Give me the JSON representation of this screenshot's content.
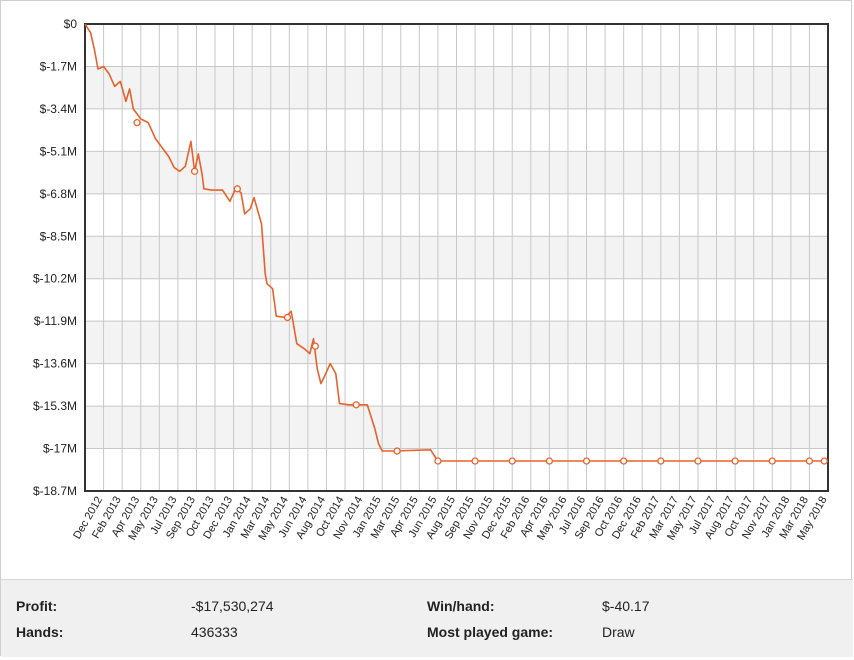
{
  "chart_data": {
    "type": "line",
    "y_ticks": [
      "$0",
      "$-1.7M",
      "$-3.4M",
      "$-5.1M",
      "$-6.8M",
      "$-8.5M",
      "$-10.2M",
      "$-11.9M",
      "$-13.6M",
      "$-15.3M",
      "$-17M",
      "$-18.7M"
    ],
    "x_ticks": [
      "Dec 2012",
      "Feb 2013",
      "Apr 2013",
      "May 2013",
      "Jul 2013",
      "Sep 2013",
      "Oct 2013",
      "Dec 2013",
      "Jan 2014",
      "Mar 2014",
      "May 2014",
      "Jun 2014",
      "Aug 2014",
      "Oct 2014",
      "Nov 2014",
      "Jan 2015",
      "Mar 2015",
      "Apr 2015",
      "Jun 2015",
      "Aug 2015",
      "Sep 2015",
      "Nov 2015",
      "Dec 2015",
      "Feb 2016",
      "Apr 2016",
      "May 2016",
      "Jul 2016",
      "Sep 2016",
      "Oct 2016",
      "Dec 2016",
      "Feb 2017",
      "Mar 2017",
      "May 2017",
      "Jul 2017",
      "Aug 2017",
      "Oct 2017",
      "Nov 2017",
      "Jan 2018",
      "Mar 2018",
      "May 2018"
    ],
    "ylim": [
      -18.7,
      0
    ],
    "y_unit": "millions of dollars",
    "series": [
      {
        "color": "#e8622b",
        "values": [
          [
            0,
            0
          ],
          [
            0.15,
            -0.35
          ],
          [
            0.25,
            -1.0
          ],
          [
            0.35,
            -1.8
          ],
          [
            0.5,
            -1.7
          ],
          [
            0.65,
            -2.0
          ],
          [
            0.8,
            -2.5
          ],
          [
            0.95,
            -2.3
          ],
          [
            1.1,
            -3.1
          ],
          [
            1.2,
            -2.6
          ],
          [
            1.3,
            -3.4
          ],
          [
            1.5,
            -3.8
          ],
          [
            1.7,
            -3.95
          ],
          [
            1.9,
            -4.6
          ],
          [
            2.05,
            -4.9
          ],
          [
            2.25,
            -5.3
          ],
          [
            2.4,
            -5.75
          ],
          [
            2.55,
            -5.9
          ],
          [
            2.7,
            -5.7
          ],
          [
            2.85,
            -4.7
          ],
          [
            2.95,
            -5.9
          ],
          [
            3.05,
            -5.2
          ],
          [
            3.15,
            -6.0
          ],
          [
            3.2,
            -6.6
          ],
          [
            3.4,
            -6.65
          ],
          [
            3.7,
            -6.65
          ],
          [
            3.9,
            -7.1
          ],
          [
            4.05,
            -6.6
          ],
          [
            4.2,
            -6.75
          ],
          [
            4.3,
            -7.6
          ],
          [
            4.45,
            -7.4
          ],
          [
            4.55,
            -6.95
          ],
          [
            4.75,
            -8.0
          ],
          [
            4.85,
            -10.0
          ],
          [
            4.9,
            -10.4
          ],
          [
            5.05,
            -10.6
          ],
          [
            5.15,
            -11.7
          ],
          [
            5.4,
            -11.75
          ],
          [
            5.55,
            -11.5
          ],
          [
            5.7,
            -12.8
          ],
          [
            5.9,
            -13.0
          ],
          [
            6.05,
            -13.2
          ],
          [
            6.15,
            -12.6
          ],
          [
            6.25,
            -13.8
          ],
          [
            6.35,
            -14.4
          ],
          [
            6.45,
            -14.1
          ],
          [
            6.6,
            -13.6
          ],
          [
            6.75,
            -14.0
          ],
          [
            6.85,
            -15.2
          ],
          [
            7.1,
            -15.25
          ],
          [
            7.6,
            -15.25
          ],
          [
            7.8,
            -16.2
          ],
          [
            7.9,
            -16.8
          ],
          [
            8.0,
            -17.1
          ],
          [
            8.3,
            -17.1
          ],
          [
            9.3,
            -17.05
          ],
          [
            9.5,
            -17.5
          ],
          [
            10.0,
            -17.5
          ],
          [
            11.0,
            -17.5
          ],
          [
            12.0,
            -17.5
          ],
          [
            13.0,
            -17.5
          ],
          [
            14.0,
            -17.5
          ],
          [
            15.0,
            -17.5
          ],
          [
            16.0,
            -17.5
          ],
          [
            17.0,
            -17.5
          ],
          [
            18.0,
            -17.5
          ],
          [
            19.0,
            -17.5
          ],
          [
            19.9,
            -17.5
          ]
        ],
        "markers": [
          [
            1.4,
            -3.95
          ],
          [
            2.95,
            -5.9
          ],
          [
            4.1,
            -6.6
          ],
          [
            5.45,
            -11.75
          ],
          [
            6.2,
            -12.9
          ],
          [
            7.3,
            -15.25
          ],
          [
            8.4,
            -17.1
          ],
          [
            9.5,
            -17.5
          ],
          [
            10.5,
            -17.5
          ],
          [
            11.5,
            -17.5
          ],
          [
            12.5,
            -17.5
          ],
          [
            13.5,
            -17.5
          ],
          [
            14.5,
            -17.5
          ],
          [
            15.5,
            -17.5
          ],
          [
            16.5,
            -17.5
          ],
          [
            17.5,
            -17.5
          ],
          [
            18.5,
            -17.5
          ],
          [
            19.5,
            -17.5
          ],
          [
            19.9,
            -17.5
          ]
        ]
      }
    ]
  },
  "stats": {
    "profit_label": "Profit:",
    "profit_value": "-$17,530,274",
    "hands_label": "Hands:",
    "hands_value": "436333",
    "win_label": "Win/hand:",
    "win_value": "$-40.17",
    "game_label": "Most played game:",
    "game_value": "Draw"
  }
}
